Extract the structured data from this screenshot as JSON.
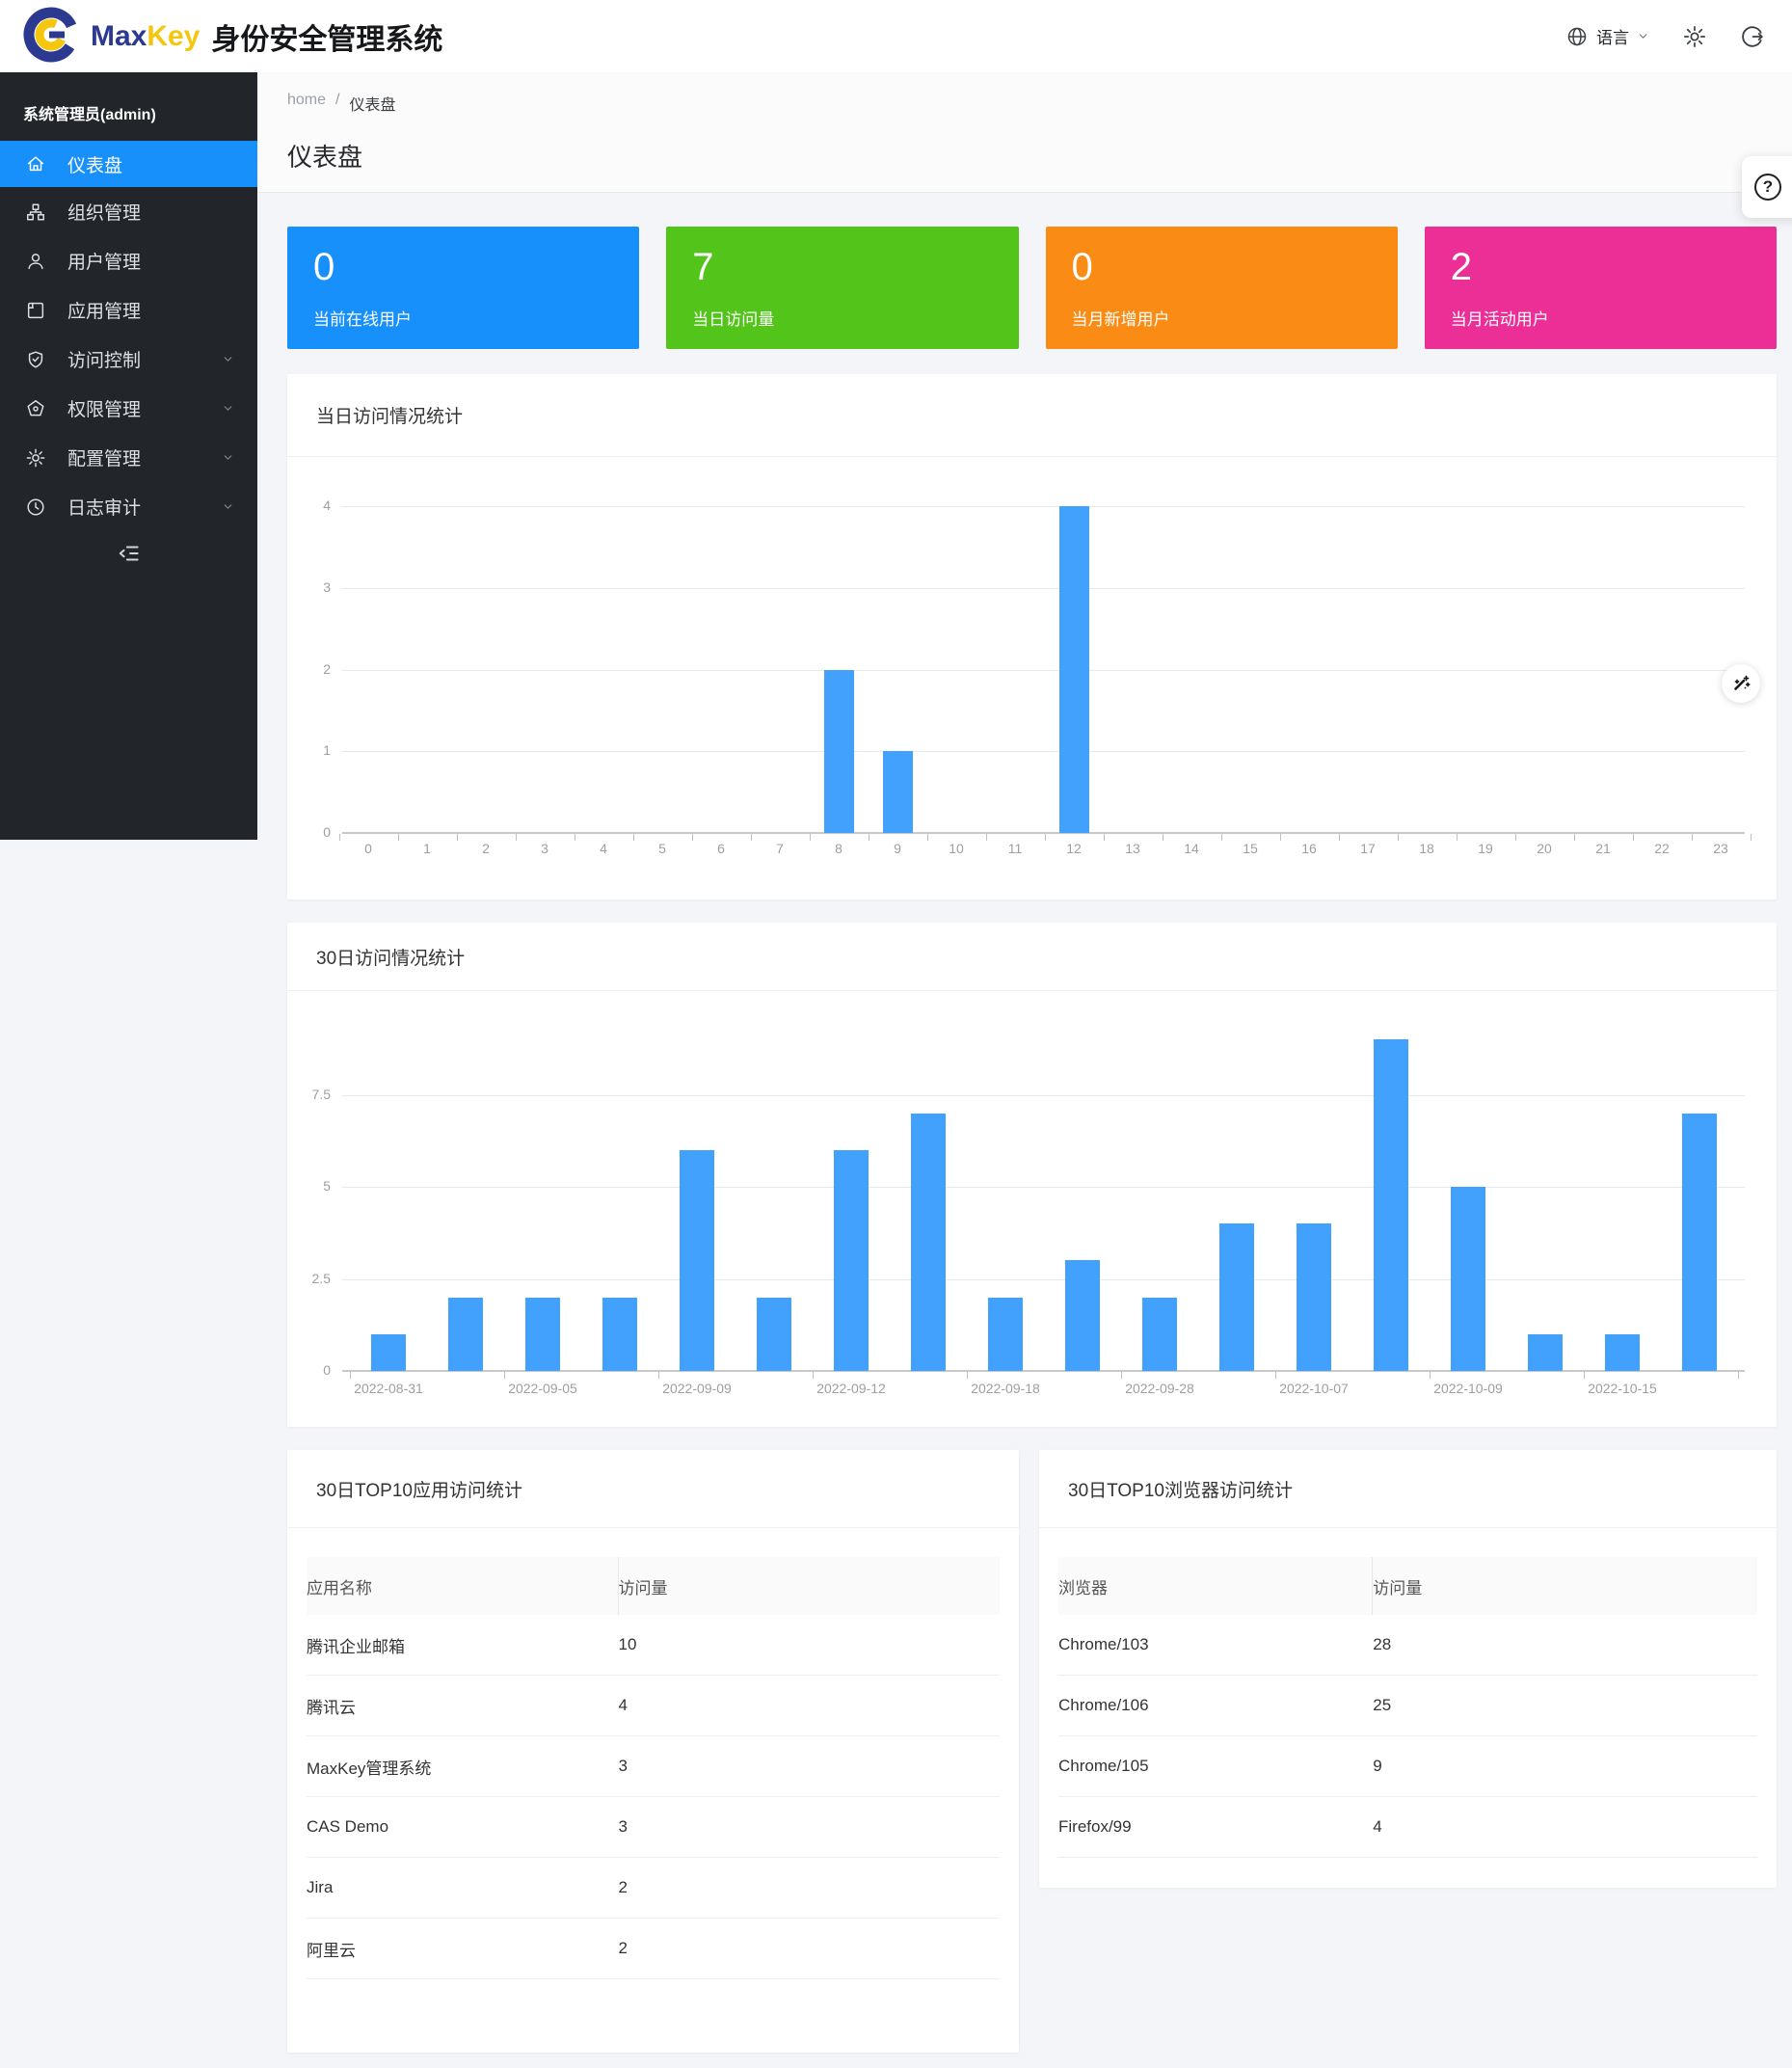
{
  "header": {
    "brand": {
      "max": "Max",
      "key": "Key",
      "suffix": "身份安全管理系统"
    },
    "language_label": "语言"
  },
  "sidebar": {
    "user_label": "系统管理员(admin)",
    "items": [
      {
        "name": "dashboard",
        "label": "仪表盘",
        "active": true,
        "chevron": false
      },
      {
        "name": "organization",
        "label": "组织管理",
        "active": false,
        "chevron": false
      },
      {
        "name": "users",
        "label": "用户管理",
        "active": false,
        "chevron": false
      },
      {
        "name": "applications",
        "label": "应用管理",
        "active": false,
        "chevron": false
      },
      {
        "name": "access-control",
        "label": "访问控制",
        "active": false,
        "chevron": true
      },
      {
        "name": "permissions",
        "label": "权限管理",
        "active": false,
        "chevron": true
      },
      {
        "name": "configuration",
        "label": "配置管理",
        "active": false,
        "chevron": true
      },
      {
        "name": "audit-log",
        "label": "日志审计",
        "active": false,
        "chevron": true
      }
    ]
  },
  "breadcrumb": {
    "home": "home",
    "separator": "/",
    "current": "仪表盘"
  },
  "page_title": "仪表盘",
  "stat_cards": [
    {
      "value": "0",
      "label": "当前在线用户",
      "color": "#1890fc"
    },
    {
      "value": "7",
      "label": "当日访问量",
      "color": "#52c41a"
    },
    {
      "value": "0",
      "label": "当月新增用户",
      "color": "#fa8c16"
    },
    {
      "value": "2",
      "label": "当月活动用户",
      "color": "#eb2f96"
    }
  ],
  "chart_data": [
    {
      "type": "bar",
      "title": "当日访问情况统计",
      "categories": [
        "0",
        "1",
        "2",
        "3",
        "4",
        "5",
        "6",
        "7",
        "8",
        "9",
        "10",
        "11",
        "12",
        "13",
        "14",
        "15",
        "16",
        "17",
        "18",
        "19",
        "20",
        "21",
        "22",
        "23"
      ],
      "values": [
        0,
        0,
        0,
        0,
        0,
        0,
        0,
        0,
        2,
        1,
        0,
        0,
        4,
        0,
        0,
        0,
        0,
        0,
        0,
        0,
        0,
        0,
        0,
        0
      ],
      "xlabel": "",
      "ylabel": "",
      "ylim": [
        0,
        4
      ],
      "yticks": [
        0,
        1,
        2,
        3,
        4
      ],
      "grid": true,
      "legend": "none",
      "bar_color": "#42a1fc"
    },
    {
      "type": "bar",
      "title": "30日访问情况统计",
      "categories": [
        "2022-08-31",
        "",
        "2022-09-05",
        "",
        "2022-09-09",
        "",
        "2022-09-12",
        "",
        "2022-09-18",
        "",
        "2022-09-28",
        "",
        "2022-10-07",
        "",
        "2022-10-09",
        "",
        "2022-10-15",
        ""
      ],
      "values": [
        1,
        2,
        2,
        2,
        6,
        2,
        6,
        7,
        2,
        3,
        2,
        4,
        4,
        9,
        5,
        1,
        1,
        7
      ],
      "xlabel": "",
      "ylabel": "",
      "ylim": [
        0,
        9
      ],
      "yticks": [
        0,
        2.5,
        5,
        7.5
      ],
      "grid": true,
      "legend": "none",
      "bar_color": "#42a1fc"
    }
  ],
  "tables": [
    {
      "title": "30日TOP10应用访问统计",
      "headers": [
        "应用名称",
        "访问量"
      ],
      "rows": [
        [
          "腾讯企业邮箱",
          "10"
        ],
        [
          "腾讯云",
          "4"
        ],
        [
          "MaxKey管理系统",
          "3"
        ],
        [
          "CAS Demo",
          "3"
        ],
        [
          "Jira",
          "2"
        ],
        [
          "阿里云",
          "2"
        ]
      ]
    },
    {
      "title": "30日TOP10浏览器访问统计",
      "headers": [
        "浏览器",
        "访问量"
      ],
      "rows": [
        [
          "Chrome/103",
          "28"
        ],
        [
          "Chrome/106",
          "25"
        ],
        [
          "Chrome/105",
          "9"
        ],
        [
          "Firefox/99",
          "4"
        ]
      ]
    }
  ],
  "floating": {
    "help_glyph": "?"
  },
  "colors": {
    "page_bg": "#f4f5f9",
    "sidebar_bg": "#22262a",
    "sidebar_active": "#1890fc",
    "brand_navy": "#2b3990",
    "brand_yellow": "#f5c60e",
    "bar_color": "#42a1fc"
  }
}
